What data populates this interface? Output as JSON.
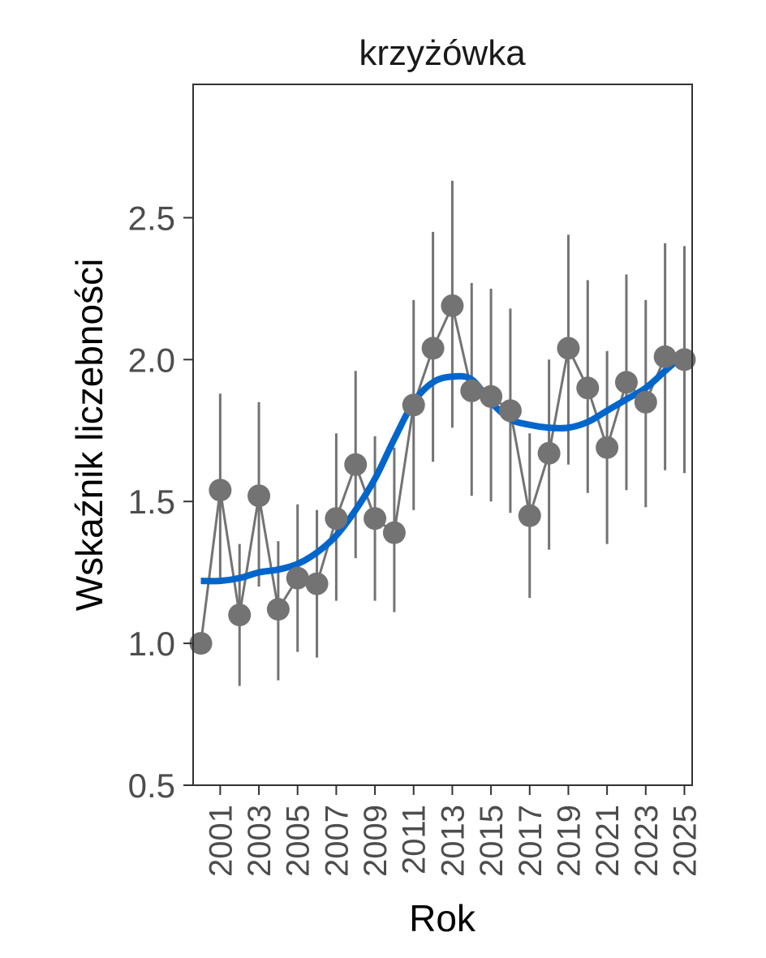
{
  "chart_data": {
    "type": "line",
    "title": "krzyżówka",
    "xlabel": "Rok",
    "ylabel": "Wskaźnik liczebności",
    "xlim": [
      1999.6,
      2025.4
    ],
    "ylim": [
      0.5,
      2.97
    ],
    "yticks": [
      0.5,
      1.0,
      1.5,
      2.0,
      2.5
    ],
    "ytick_labels": [
      "0.5",
      "1.0",
      "1.5",
      "2.0",
      "2.5"
    ],
    "xticks": [
      2001,
      2003,
      2005,
      2007,
      2009,
      2011,
      2013,
      2015,
      2017,
      2019,
      2021,
      2023,
      2025
    ],
    "xtick_labels": [
      "2001",
      "2003",
      "2005",
      "2007",
      "2009",
      "2011",
      "2013",
      "2015",
      "2017",
      "2019",
      "2021",
      "2023",
      "2025"
    ],
    "grid": false,
    "series": [
      {
        "name": "index",
        "color": "#737373",
        "x": [
          2000,
          2001,
          2002,
          2003,
          2004,
          2005,
          2006,
          2007,
          2008,
          2009,
          2010,
          2011,
          2012,
          2013,
          2014,
          2015,
          2016,
          2017,
          2018,
          2019,
          2020,
          2021,
          2022,
          2023,
          2024,
          2025
        ],
        "y": [
          1.0,
          1.54,
          1.1,
          1.52,
          1.12,
          1.23,
          1.21,
          1.44,
          1.63,
          1.44,
          1.39,
          1.84,
          2.04,
          2.19,
          1.89,
          1.87,
          1.82,
          1.45,
          1.67,
          2.04,
          1.9,
          1.69,
          1.92,
          1.85,
          2.01,
          2.0
        ],
        "lower": [
          null,
          1.21,
          0.85,
          1.2,
          0.87,
          0.97,
          0.95,
          1.15,
          1.3,
          1.15,
          1.11,
          1.47,
          1.64,
          1.76,
          1.52,
          1.5,
          1.46,
          1.16,
          1.33,
          1.63,
          1.53,
          1.35,
          1.54,
          1.48,
          1.61,
          1.6
        ],
        "upper": [
          null,
          1.88,
          1.35,
          1.85,
          1.36,
          1.49,
          1.47,
          1.74,
          1.96,
          1.73,
          1.69,
          2.21,
          2.45,
          2.63,
          2.27,
          2.25,
          2.18,
          1.74,
          2.0,
          2.44,
          2.28,
          2.03,
          2.3,
          2.21,
          2.41,
          2.4
        ]
      },
      {
        "name": "trend",
        "color": "#0066cc",
        "x": [
          2000,
          2001,
          2002,
          2003,
          2004,
          2005,
          2006,
          2007,
          2008,
          2009,
          2010,
          2011,
          2012,
          2013,
          2014,
          2015,
          2016,
          2017,
          2018,
          2019,
          2020,
          2021,
          2022,
          2023,
          2024,
          2025
        ],
        "y": [
          1.22,
          1.22,
          1.23,
          1.25,
          1.26,
          1.28,
          1.32,
          1.38,
          1.47,
          1.58,
          1.72,
          1.85,
          1.92,
          1.94,
          1.93,
          1.85,
          1.79,
          1.77,
          1.76,
          1.76,
          1.78,
          1.82,
          1.86,
          1.9,
          1.96,
          2.02
        ]
      }
    ]
  }
}
